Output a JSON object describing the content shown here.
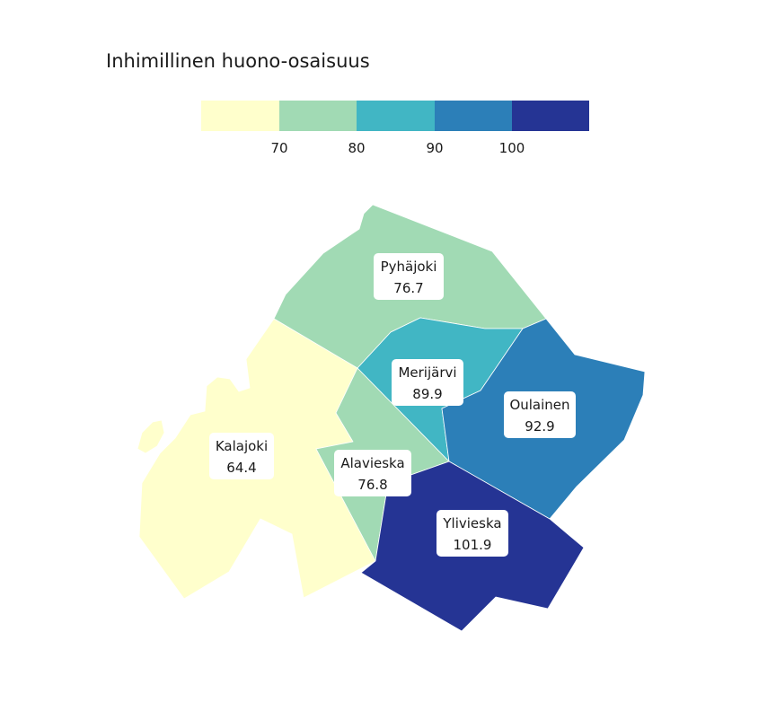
{
  "title": "Inhimillinen huono-osaisuus",
  "legend": {
    "bins": [
      {
        "color": "#ffffcc"
      },
      {
        "color": "#a1dab4"
      },
      {
        "color": "#41b6c4"
      },
      {
        "color": "#2c7fb8"
      },
      {
        "color": "#253494"
      }
    ],
    "ticks": [
      "70",
      "80",
      "90",
      "100"
    ]
  },
  "regions": [
    {
      "name": "Kalajoki",
      "value": "64.4",
      "color": "#ffffcc"
    },
    {
      "name": "Pyhäjoki",
      "value": "76.7",
      "color": "#a1dab4"
    },
    {
      "name": "Alavieska",
      "value": "76.8",
      "color": "#a1dab4"
    },
    {
      "name": "Merijärvi",
      "value": "89.9",
      "color": "#41b6c4"
    },
    {
      "name": "Oulainen",
      "value": "92.9",
      "color": "#2c7fb8"
    },
    {
      "name": "Ylivieska",
      "value": "101.9",
      "color": "#253494"
    }
  ]
}
